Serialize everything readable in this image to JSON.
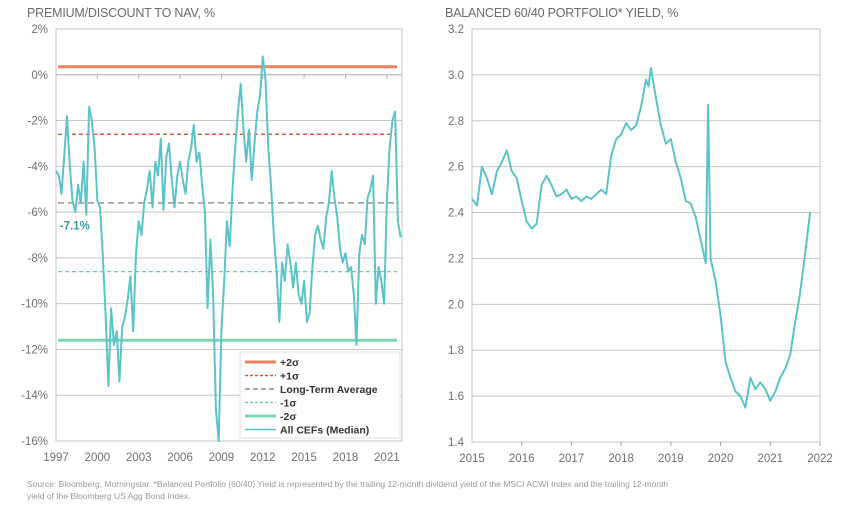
{
  "footnote": {
    "line1": "Source: Bloomberg, Morningstar. *Balanced Portfolio (60/40) Yield is represented by the trailing 12-month dividend yield of the MSCI ACWI Index and the trailing 12-month",
    "line2": "yield of the Bloomberg US Agg Bond Index."
  },
  "colors": {
    "series": "#5cc4c8",
    "plus2": "#f0805f",
    "plus1": "#d9532b",
    "average": "#8c8c8c",
    "minus1": "#6fcca8",
    "minus2": "#7ed6b0",
    "grid": "#c8c8c8",
    "annotation": "#3a9a9a"
  },
  "chart_data": [
    {
      "type": "line",
      "title": "PREMIUM/DISCOUNT TO NAV, %",
      "xlabel": "",
      "ylabel": "",
      "xlim": [
        1997,
        2022.1
      ],
      "ylim": [
        -16,
        2
      ],
      "grid": true,
      "y_ticks": [
        2,
        0,
        -2,
        -4,
        -6,
        -8,
        -10,
        -12,
        -14,
        -16
      ],
      "y_tick_labels": [
        "2%",
        "0%",
        "-2%",
        "-4%",
        "-6%",
        "-8%",
        "-10%",
        "-12%",
        "-14%",
        "-16%"
      ],
      "x_ticks": [
        1997,
        2000,
        2003,
        2006,
        2009,
        2012,
        2015,
        2018,
        2021
      ],
      "x_tick_labels": [
        "1997",
        "2000",
        "2003",
        "2006",
        "2009",
        "2012",
        "2015",
        "2018",
        "2021"
      ],
      "legend_position": "bottom-right",
      "annotation": {
        "text": "-7.1%",
        "x": 1997.2,
        "y": -7.1
      },
      "reference_lines": [
        {
          "name": "+2σ",
          "value": 0.35,
          "style": "solid-double",
          "color_key": "plus2"
        },
        {
          "name": "+1σ",
          "value": -2.6,
          "style": "dashed",
          "color_key": "plus1"
        },
        {
          "name": "Long-Term Average",
          "value": -5.6,
          "style": "dashed-long",
          "color_key": "average"
        },
        {
          "name": "-1σ",
          "value": -8.6,
          "style": "dashed",
          "color_key": "minus1"
        },
        {
          "name": "-2σ",
          "value": -11.6,
          "style": "solid-double",
          "color_key": "minus2"
        }
      ],
      "series": [
        {
          "name": "All CEFs (Median)",
          "x": [
            1997.0,
            1997.2,
            1997.4,
            1997.6,
            1997.8,
            1998.0,
            1998.2,
            1998.4,
            1998.6,
            1998.8,
            1999.0,
            1999.2,
            1999.4,
            1999.6,
            1999.8,
            2000.0,
            2000.2,
            2000.4,
            2000.6,
            2000.8,
            2001.0,
            2001.2,
            2001.4,
            2001.6,
            2001.8,
            2002.0,
            2002.2,
            2002.4,
            2002.6,
            2002.8,
            2003.0,
            2003.2,
            2003.4,
            2003.6,
            2003.8,
            2004.0,
            2004.2,
            2004.4,
            2004.6,
            2004.8,
            2005.0,
            2005.2,
            2005.4,
            2005.6,
            2005.8,
            2006.0,
            2006.2,
            2006.4,
            2006.6,
            2006.8,
            2007.0,
            2007.2,
            2007.4,
            2007.6,
            2007.8,
            2008.0,
            2008.2,
            2008.4,
            2008.6,
            2008.8,
            2009.0,
            2009.2,
            2009.4,
            2009.6,
            2009.8,
            2010.0,
            2010.2,
            2010.4,
            2010.6,
            2010.8,
            2011.0,
            2011.2,
            2011.4,
            2011.6,
            2011.8,
            2012.0,
            2012.2,
            2012.4,
            2012.6,
            2012.8,
            2013.0,
            2013.2,
            2013.4,
            2013.6,
            2013.8,
            2014.0,
            2014.2,
            2014.4,
            2014.6,
            2014.8,
            2015.0,
            2015.2,
            2015.4,
            2015.6,
            2015.8,
            2016.0,
            2016.2,
            2016.4,
            2016.6,
            2016.8,
            2017.0,
            2017.2,
            2017.4,
            2017.6,
            2017.8,
            2018.0,
            2018.2,
            2018.4,
            2018.6,
            2018.8,
            2019.0,
            2019.2,
            2019.4,
            2019.6,
            2019.8,
            2020.0,
            2020.2,
            2020.4,
            2020.6,
            2020.8,
            2021.0,
            2021.2,
            2021.4,
            2021.6,
            2021.8,
            2022.0
          ],
          "y": [
            -4.2,
            -4.4,
            -5.2,
            -3.5,
            -1.8,
            -4.0,
            -5.5,
            -6.0,
            -4.8,
            -5.6,
            -3.8,
            -6.1,
            -1.4,
            -2.0,
            -3.2,
            -5.5,
            -5.8,
            -8.0,
            -10.5,
            -13.6,
            -10.2,
            -11.8,
            -11.2,
            -13.4,
            -11.0,
            -10.6,
            -9.8,
            -8.8,
            -11.2,
            -7.8,
            -6.4,
            -7.0,
            -5.6,
            -5.0,
            -4.2,
            -5.8,
            -3.8,
            -4.4,
            -2.8,
            -5.9,
            -3.6,
            -3.0,
            -4.6,
            -5.8,
            -4.4,
            -3.8,
            -4.6,
            -5.2,
            -3.8,
            -3.2,
            -2.2,
            -3.8,
            -3.4,
            -4.8,
            -6.0,
            -10.2,
            -7.2,
            -9.6,
            -14.6,
            -16.0,
            -11.2,
            -9.0,
            -6.4,
            -7.5,
            -5.1,
            -3.2,
            -1.6,
            -0.4,
            -2.4,
            -3.8,
            -2.4,
            -4.6,
            -3.0,
            -1.6,
            -0.9,
            0.8,
            -0.2,
            -3.2,
            -4.8,
            -7.0,
            -8.6,
            -10.8,
            -8.2,
            -9.0,
            -7.4,
            -8.2,
            -9.3,
            -8.2,
            -9.6,
            -10.0,
            -9.0,
            -10.8,
            -10.4,
            -8.4,
            -7.0,
            -6.6,
            -7.2,
            -7.6,
            -6.2,
            -5.6,
            -4.2,
            -5.4,
            -6.2,
            -7.6,
            -8.2,
            -7.8,
            -8.6,
            -8.4,
            -9.6,
            -11.8,
            -7.8,
            -7.0,
            -7.4,
            -5.4,
            -5.0,
            -4.4,
            -10.0,
            -8.4,
            -9.0,
            -10.0,
            -5.6,
            -3.2,
            -2.0,
            -1.6,
            -6.4,
            -7.1
          ]
        }
      ]
    },
    {
      "type": "line",
      "title": "BALANCED 60/40 PORTFOLIO* YIELD, %",
      "xlabel": "",
      "ylabel": "",
      "xlim": [
        2015,
        2022
      ],
      "ylim": [
        1.4,
        3.2
      ],
      "grid": true,
      "y_ticks": [
        3.2,
        3.0,
        2.8,
        2.6,
        2.4,
        2.2,
        2.0,
        1.8,
        1.6,
        1.4
      ],
      "y_tick_labels": [
        "3.2",
        "3.0",
        "2.8",
        "2.6",
        "2.4",
        "2.2",
        "2.0",
        "1.8",
        "1.6",
        "1.4"
      ],
      "x_ticks": [
        2015,
        2016,
        2017,
        2018,
        2019,
        2020,
        2021,
        2022
      ],
      "x_tick_labels": [
        "2015",
        "2016",
        "2017",
        "2018",
        "2019",
        "2020",
        "2021",
        "2022"
      ],
      "series": [
        {
          "name": "Balanced 60/40 Portfolio Yield",
          "x": [
            2015.0,
            2015.1,
            2015.2,
            2015.3,
            2015.4,
            2015.5,
            2015.6,
            2015.7,
            2015.8,
            2015.9,
            2016.0,
            2016.1,
            2016.2,
            2016.3,
            2016.4,
            2016.5,
            2016.6,
            2016.7,
            2016.8,
            2016.9,
            2017.0,
            2017.1,
            2017.2,
            2017.3,
            2017.4,
            2017.5,
            2017.6,
            2017.7,
            2017.8,
            2017.9,
            2018.0,
            2018.1,
            2018.2,
            2018.3,
            2018.4,
            2018.5,
            2018.55,
            2018.6,
            2018.7,
            2018.8,
            2018.9,
            2019.0,
            2019.1,
            2019.2,
            2019.3,
            2019.4,
            2019.5,
            2019.6,
            2019.7,
            2019.75,
            2019.8,
            2019.9,
            2020.0,
            2020.1,
            2020.2,
            2020.3,
            2020.4,
            2020.5,
            2020.6,
            2020.7,
            2020.8,
            2020.9,
            2021.0,
            2021.1,
            2021.2,
            2021.3,
            2021.4,
            2021.5,
            2021.6,
            2021.7,
            2021.8
          ],
          "y": [
            2.46,
            2.43,
            2.6,
            2.55,
            2.48,
            2.58,
            2.62,
            2.67,
            2.58,
            2.55,
            2.45,
            2.36,
            2.33,
            2.35,
            2.52,
            2.56,
            2.52,
            2.47,
            2.48,
            2.5,
            2.46,
            2.47,
            2.45,
            2.47,
            2.46,
            2.48,
            2.5,
            2.48,
            2.65,
            2.72,
            2.74,
            2.79,
            2.76,
            2.78,
            2.86,
            2.98,
            2.95,
            3.03,
            2.9,
            2.78,
            2.7,
            2.72,
            2.62,
            2.55,
            2.45,
            2.44,
            2.38,
            2.28,
            2.18,
            2.87,
            2.2,
            2.1,
            1.95,
            1.75,
            1.68,
            1.62,
            1.6,
            1.55,
            1.68,
            1.63,
            1.66,
            1.63,
            1.58,
            1.62,
            1.68,
            1.72,
            1.78,
            1.92,
            2.05,
            2.22,
            2.4
          ]
        }
      ]
    }
  ]
}
